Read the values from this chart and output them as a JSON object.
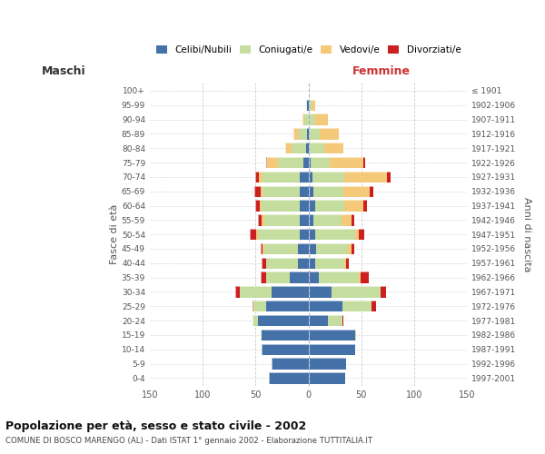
{
  "age_groups": [
    "100+",
    "95-99",
    "90-94",
    "85-89",
    "80-84",
    "75-79",
    "70-74",
    "65-69",
    "60-64",
    "55-59",
    "50-54",
    "45-49",
    "40-44",
    "35-39",
    "30-34",
    "25-29",
    "20-24",
    "15-19",
    "10-14",
    "5-9",
    "0-4"
  ],
  "birth_years": [
    "≤ 1901",
    "1902-1906",
    "1907-1911",
    "1912-1916",
    "1917-1921",
    "1922-1926",
    "1927-1931",
    "1932-1936",
    "1937-1941",
    "1942-1946",
    "1947-1951",
    "1952-1956",
    "1957-1961",
    "1962-1966",
    "1967-1971",
    "1972-1976",
    "1977-1981",
    "1982-1986",
    "1987-1991",
    "1992-1996",
    "1997-2001"
  ],
  "colors": {
    "celibi_nubili": "#4472a8",
    "coniugati": "#c5dea0",
    "vedovi": "#f5c97a",
    "divorziati": "#cc2020"
  },
  "title": "Popolazione per età, sesso e stato civile - 2002",
  "subtitle": "COMUNE DI BOSCO MARENGO (AL) - Dati ISTAT 1° gennaio 2002 - Elaborazione TUTTITALIA.IT",
  "xlabel_left": "Maschi",
  "xlabel_right": "Femmine",
  "ylabel_left": "Fasce di età",
  "ylabel_right": "Anni di nascita",
  "xlim": 150,
  "legend_labels": [
    "Celibi/Nubili",
    "Coniugati/e",
    "Vedovi/e",
    "Divorziati/e"
  ],
  "background_color": "#ffffff",
  "grid_color": "#cccccc",
  "m_cel": [
    0,
    1,
    0,
    1,
    2,
    5,
    8,
    8,
    8,
    8,
    8,
    10,
    10,
    18,
    35,
    40,
    48,
    44,
    44,
    35,
    37
  ],
  "m_con": [
    0,
    1,
    4,
    8,
    14,
    24,
    35,
    35,
    36,
    34,
    40,
    32,
    30,
    22,
    30,
    12,
    5,
    1,
    0,
    0,
    0
  ],
  "m_ved": [
    0,
    0,
    2,
    5,
    6,
    10,
    4,
    2,
    2,
    2,
    1,
    1,
    0,
    0,
    0,
    0,
    0,
    0,
    0,
    0,
    0
  ],
  "m_div": [
    0,
    0,
    0,
    0,
    0,
    1,
    3,
    6,
    4,
    4,
    6,
    2,
    4,
    5,
    4,
    1,
    0,
    0,
    0,
    0,
    0
  ],
  "f_nub": [
    0,
    1,
    1,
    1,
    1,
    2,
    4,
    5,
    6,
    5,
    6,
    7,
    6,
    10,
    22,
    32,
    18,
    44,
    44,
    36,
    35
  ],
  "f_con": [
    0,
    2,
    5,
    10,
    14,
    18,
    30,
    28,
    28,
    26,
    38,
    30,
    28,
    38,
    46,
    28,
    14,
    1,
    0,
    0,
    0
  ],
  "f_ved": [
    0,
    3,
    12,
    18,
    18,
    32,
    40,
    25,
    18,
    10,
    4,
    4,
    2,
    1,
    0,
    0,
    0,
    0,
    0,
    0,
    0
  ],
  "f_div": [
    0,
    0,
    0,
    0,
    0,
    2,
    4,
    3,
    3,
    2,
    5,
    2,
    2,
    8,
    5,
    4,
    1,
    0,
    0,
    0,
    0
  ]
}
